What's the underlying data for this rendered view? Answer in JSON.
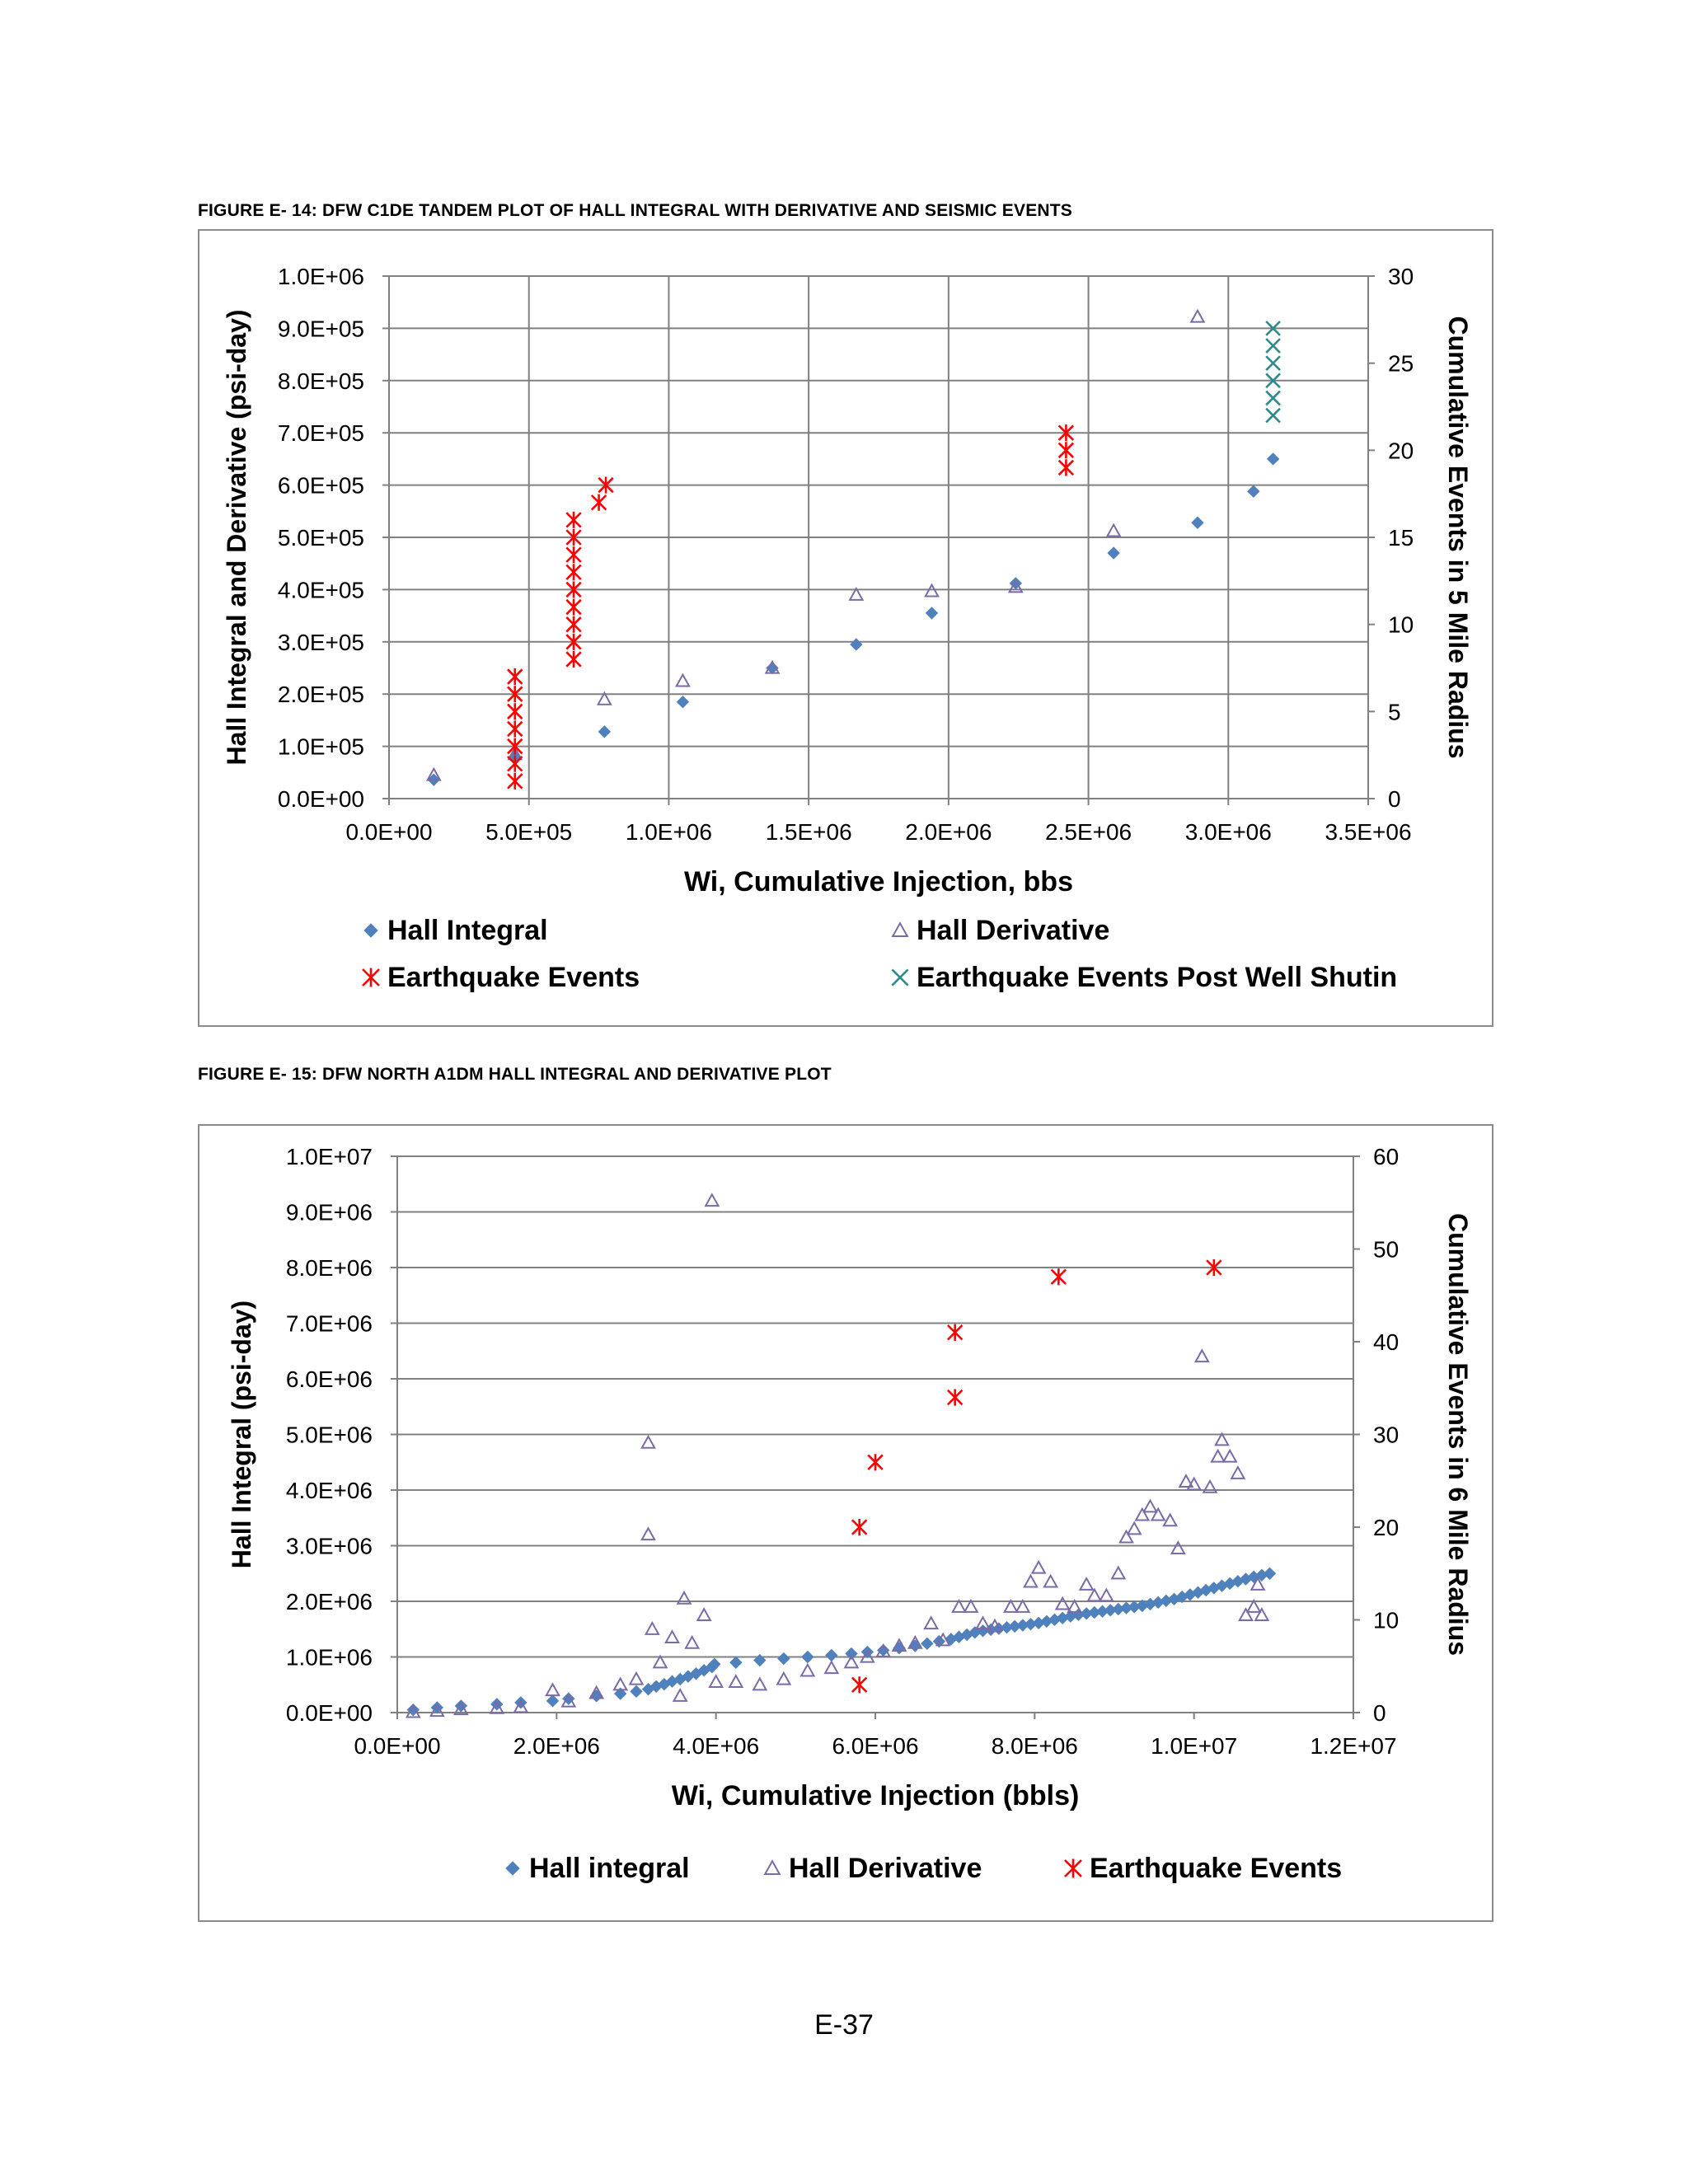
{
  "captions": {
    "figure_e14": "FIGURE E- 14:  DFW C1DE TANDEM PLOT OF HALL INTEGRAL WITH DERIVATIVE AND SEISMIC EVENTS",
    "figure_e15": "FIGURE E- 15:  DFW NORTH A1DM HALL INTEGRAL AND DERIVATIVE PLOT"
  },
  "page_number": "E-37",
  "colors": {
    "hall_integral": "#4f81bd",
    "hall_derivative": "#7a6aa6",
    "earthquake": "#ff0000",
    "post_shutin": "#2e8b8b",
    "grid": "#808080"
  },
  "chart_data": [
    {
      "type": "scatter",
      "title": "",
      "xlabel": "Wi, Cumulative Injection, bbs",
      "ylabel": "Hall Integral and Derivative (psi-day)",
      "y2label": "Cumulative Events in 5 Mile Radius",
      "xlim": [
        0,
        3500000
      ],
      "ylim": [
        0,
        1000000
      ],
      "y2lim": [
        0,
        30
      ],
      "x_ticks": [
        "0.0E+00",
        "5.0E+05",
        "1.0E+06",
        "1.5E+06",
        "2.0E+06",
        "2.5E+06",
        "3.0E+06",
        "3.5E+06"
      ],
      "y_ticks": [
        "0.0E+00",
        "1.0E+05",
        "2.0E+05",
        "3.0E+05",
        "4.0E+05",
        "5.0E+05",
        "6.0E+05",
        "7.0E+05",
        "8.0E+05",
        "9.0E+05",
        "1.0E+06"
      ],
      "y2_ticks": [
        "0",
        "5",
        "10",
        "15",
        "20",
        "25",
        "30"
      ],
      "vertical_grid": true,
      "horizontal_grid": true,
      "legend_position": "bottom",
      "series": [
        {
          "name": "Hall Integral",
          "marker": "diamond",
          "axis": "left",
          "points": [
            [
              160000,
              36000
            ],
            [
              450000,
              80000
            ],
            [
              770000,
              128000
            ],
            [
              1050000,
              185000
            ],
            [
              1370000,
              250000
            ],
            [
              1670000,
              295000
            ],
            [
              1940000,
              355000
            ],
            [
              2240000,
              412000
            ],
            [
              2590000,
              470000
            ],
            [
              2890000,
              528000
            ],
            [
              3090000,
              588000
            ],
            [
              3160000,
              650000
            ]
          ]
        },
        {
          "name": "Hall Derivative",
          "marker": "triangle",
          "axis": "left",
          "points": [
            [
              160000,
              45000
            ],
            [
              450000,
              85000
            ],
            [
              770000,
              190000
            ],
            [
              1050000,
              225000
            ],
            [
              1370000,
              250000
            ],
            [
              1670000,
              390000
            ],
            [
              1940000,
              397000
            ],
            [
              2240000,
              405000
            ],
            [
              2590000,
              512000
            ],
            [
              2890000,
              922000
            ]
          ]
        },
        {
          "name": "Earthquake Events",
          "marker": "asterisk",
          "axis": "right",
          "points": [
            [
              450000,
              1
            ],
            [
              450000,
              2
            ],
            [
              450000,
              3
            ],
            [
              450000,
              4
            ],
            [
              450000,
              5
            ],
            [
              450000,
              6
            ],
            [
              450000,
              7
            ],
            [
              660000,
              8
            ],
            [
              660000,
              9
            ],
            [
              660000,
              10
            ],
            [
              660000,
              11
            ],
            [
              660000,
              12
            ],
            [
              660000,
              13
            ],
            [
              660000,
              14
            ],
            [
              660000,
              15
            ],
            [
              660000,
              16
            ],
            [
              750000,
              17
            ],
            [
              775000,
              18
            ],
            [
              2420000,
              19
            ],
            [
              2420000,
              20
            ],
            [
              2420000,
              21
            ]
          ]
        },
        {
          "name": "Earthquake Events Post Well Shutin",
          "marker": "x",
          "axis": "right",
          "points": [
            [
              3160000,
              22
            ],
            [
              3160000,
              23
            ],
            [
              3160000,
              24
            ],
            [
              3160000,
              25
            ],
            [
              3160000,
              26
            ],
            [
              3160000,
              27
            ]
          ]
        }
      ]
    },
    {
      "type": "scatter",
      "title": "",
      "xlabel": "Wi, Cumulative Injection (bbls)",
      "ylabel": "Hall Integral (psi-day)",
      "y2label": "Cumulative Events in 6 Mile Radius",
      "xlim": [
        0,
        12000000
      ],
      "ylim": [
        0,
        10000000
      ],
      "y2lim": [
        0,
        60
      ],
      "x_ticks": [
        "0.0E+00",
        "2.0E+06",
        "4.0E+06",
        "6.0E+06",
        "8.0E+06",
        "1.0E+07",
        "1.2E+07"
      ],
      "y_ticks": [
        "0.0E+00",
        "1.0E+06",
        "2.0E+06",
        "3.0E+06",
        "4.0E+06",
        "5.0E+06",
        "6.0E+06",
        "7.0E+06",
        "8.0E+06",
        "9.0E+06",
        "1.0E+07"
      ],
      "y2_ticks": [
        "0",
        "10",
        "20",
        "30",
        "40",
        "50",
        "60"
      ],
      "vertical_grid": false,
      "horizontal_grid": true,
      "legend_position": "bottom",
      "series": [
        {
          "name": "Hall integral",
          "marker": "diamond",
          "axis": "left",
          "points": [
            [
              200000,
              50000
            ],
            [
              500000,
              90000
            ],
            [
              800000,
              120000
            ],
            [
              1250000,
              150000
            ],
            [
              1550000,
              180000
            ],
            [
              1950000,
              210000
            ],
            [
              2150000,
              250000
            ],
            [
              2500000,
              300000
            ],
            [
              2800000,
              340000
            ],
            [
              3000000,
              380000
            ],
            [
              3150000,
              420000
            ],
            [
              3250000,
              470000
            ],
            [
              3350000,
              510000
            ],
            [
              3450000,
              560000
            ],
            [
              3550000,
              600000
            ],
            [
              3650000,
              650000
            ],
            [
              3750000,
              700000
            ],
            [
              3850000,
              760000
            ],
            [
              3950000,
              820000
            ],
            [
              3980000,
              870000
            ],
            [
              4250000,
              900000
            ],
            [
              4550000,
              940000
            ],
            [
              4850000,
              970000
            ],
            [
              5150000,
              1000000
            ],
            [
              5450000,
              1030000
            ],
            [
              5700000,
              1060000
            ],
            [
              5900000,
              1090000
            ],
            [
              6100000,
              1120000
            ],
            [
              6300000,
              1160000
            ],
            [
              6500000,
              1200000
            ],
            [
              6650000,
              1240000
            ],
            [
              6800000,
              1280000
            ],
            [
              6950000,
              1320000
            ],
            [
              7050000,
              1360000
            ],
            [
              7150000,
              1400000
            ],
            [
              7250000,
              1440000
            ],
            [
              7350000,
              1470000
            ],
            [
              7450000,
              1490000
            ],
            [
              7550000,
              1510000
            ],
            [
              7650000,
              1530000
            ],
            [
              7750000,
              1550000
            ],
            [
              7850000,
              1570000
            ],
            [
              7950000,
              1590000
            ],
            [
              8050000,
              1610000
            ],
            [
              8150000,
              1640000
            ],
            [
              8250000,
              1670000
            ],
            [
              8350000,
              1700000
            ],
            [
              8450000,
              1730000
            ],
            [
              8550000,
              1760000
            ],
            [
              8650000,
              1780000
            ],
            [
              8750000,
              1800000
            ],
            [
              8850000,
              1820000
            ],
            [
              8950000,
              1840000
            ],
            [
              9050000,
              1860000
            ],
            [
              9150000,
              1880000
            ],
            [
              9250000,
              1900000
            ],
            [
              9350000,
              1920000
            ],
            [
              9450000,
              1950000
            ],
            [
              9550000,
              1980000
            ],
            [
              9650000,
              2010000
            ],
            [
              9750000,
              2040000
            ],
            [
              9850000,
              2080000
            ],
            [
              9950000,
              2120000
            ],
            [
              10050000,
              2160000
            ],
            [
              10150000,
              2200000
            ],
            [
              10250000,
              2240000
            ],
            [
              10350000,
              2280000
            ],
            [
              10450000,
              2320000
            ],
            [
              10550000,
              2360000
            ],
            [
              10650000,
              2400000
            ],
            [
              10750000,
              2440000
            ],
            [
              10850000,
              2470000
            ],
            [
              10950000,
              2500000
            ]
          ]
        },
        {
          "name": "Hall Derivative",
          "marker": "triangle",
          "axis": "left",
          "points": [
            [
              200000,
              10000
            ],
            [
              500000,
              30000
            ],
            [
              800000,
              60000
            ],
            [
              1250000,
              80000
            ],
            [
              1550000,
              100000
            ],
            [
              1950000,
              400000
            ],
            [
              2150000,
              200000
            ],
            [
              2500000,
              350000
            ],
            [
              2800000,
              500000
            ],
            [
              3000000,
              600000
            ],
            [
              3150000,
              3200000
            ],
            [
              3150000,
              4850000
            ],
            [
              3200000,
              1500000
            ],
            [
              3300000,
              900000
            ],
            [
              3450000,
              1350000
            ],
            [
              3550000,
              300000
            ],
            [
              3600000,
              2050000
            ],
            [
              3700000,
              1250000
            ],
            [
              3850000,
              1750000
            ],
            [
              3950000,
              9200000
            ],
            [
              4000000,
              550000
            ],
            [
              4250000,
              550000
            ],
            [
              4550000,
              500000
            ],
            [
              4850000,
              600000
            ],
            [
              5150000,
              750000
            ],
            [
              5450000,
              800000
            ],
            [
              5700000,
              900000
            ],
            [
              5900000,
              1000000
            ],
            [
              6100000,
              1100000
            ],
            [
              6300000,
              1200000
            ],
            [
              6500000,
              1250000
            ],
            [
              6700000,
              1600000
            ],
            [
              6850000,
              1300000
            ],
            [
              7050000,
              1900000
            ],
            [
              7200000,
              1900000
            ],
            [
              7350000,
              1600000
            ],
            [
              7500000,
              1550000
            ],
            [
              7700000,
              1900000
            ],
            [
              7850000,
              1900000
            ],
            [
              7950000,
              2350000
            ],
            [
              8050000,
              2600000
            ],
            [
              8200000,
              2350000
            ],
            [
              8350000,
              1950000
            ],
            [
              8500000,
              1900000
            ],
            [
              8650000,
              2300000
            ],
            [
              8750000,
              2100000
            ],
            [
              8900000,
              2100000
            ],
            [
              9050000,
              2500000
            ],
            [
              9150000,
              3150000
            ],
            [
              9250000,
              3300000
            ],
            [
              9350000,
              3550000
            ],
            [
              9450000,
              3700000
            ],
            [
              9550000,
              3550000
            ],
            [
              9700000,
              3450000
            ],
            [
              9800000,
              2950000
            ],
            [
              9900000,
              4150000
            ],
            [
              10000000,
              4100000
            ],
            [
              10100000,
              6400000
            ],
            [
              10200000,
              4050000
            ],
            [
              10300000,
              4600000
            ],
            [
              10350000,
              4900000
            ],
            [
              10450000,
              4600000
            ],
            [
              10550000,
              4300000
            ],
            [
              10650000,
              1750000
            ],
            [
              10750000,
              1900000
            ],
            [
              10800000,
              2300000
            ],
            [
              10850000,
              1750000
            ]
          ]
        },
        {
          "name": "Earthquake Events",
          "marker": "asterisk",
          "axis": "right",
          "points": [
            [
              5800000,
              3
            ],
            [
              5800000,
              20
            ],
            [
              6000000,
              27
            ],
            [
              7000000,
              34
            ],
            [
              7000000,
              41
            ],
            [
              8300000,
              47
            ],
            [
              10250000,
              48
            ]
          ]
        }
      ]
    }
  ]
}
